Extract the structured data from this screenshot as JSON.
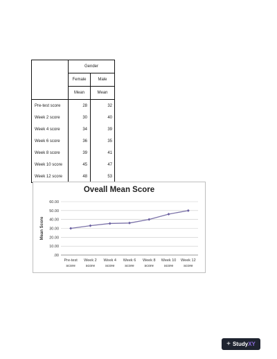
{
  "table": {
    "group_header": "Gender",
    "columns": [
      "Female",
      "Male"
    ],
    "stat_label": "Mean",
    "rows": [
      {
        "label": "Pre-test score",
        "female": "28",
        "male": "32"
      },
      {
        "label": "Week 2 score",
        "female": "30",
        "male": "40"
      },
      {
        "label": "Week 4 score",
        "female": "34",
        "male": "39"
      },
      {
        "label": "Week 6 score",
        "female": "36",
        "male": "35"
      },
      {
        "label": "Week 8 score",
        "female": "39",
        "male": "41"
      },
      {
        "label": "Week 10 score",
        "female": "45",
        "male": "47"
      },
      {
        "label": "Week 12 score",
        "female": "48",
        "male": "53"
      }
    ]
  },
  "chart_data": {
    "type": "line",
    "title": "Oveall Mean Score",
    "xlabel": "",
    "ylabel": "Mean Score",
    "categories": [
      "Pre-test score",
      "Week 2 score",
      "Week 4 score",
      "Week 6 score",
      "Week 8 score",
      "Week 10 score",
      "Week 12 score"
    ],
    "category_lines": [
      [
        "Pre-test",
        "score"
      ],
      [
        "Week 2",
        "score"
      ],
      [
        "Week 4",
        "score"
      ],
      [
        "Week 6",
        "score"
      ],
      [
        "Week 8",
        "score"
      ],
      [
        "Week 10",
        "score"
      ],
      [
        "Week 12",
        "score"
      ]
    ],
    "series": [
      {
        "values": [
          30,
          33,
          35.5,
          36,
          40,
          46,
          50
        ]
      }
    ],
    "ylim": [
      0,
      60
    ],
    "yticks": [
      ".00",
      "10.00",
      "20.00",
      "30.00",
      "40.00",
      "50.00",
      "60.00"
    ],
    "grid": true,
    "line_color": "#7b72a8",
    "marker_color": "#6a5fa0"
  },
  "logo": {
    "text_main": "Study",
    "text_accent": "XY"
  }
}
